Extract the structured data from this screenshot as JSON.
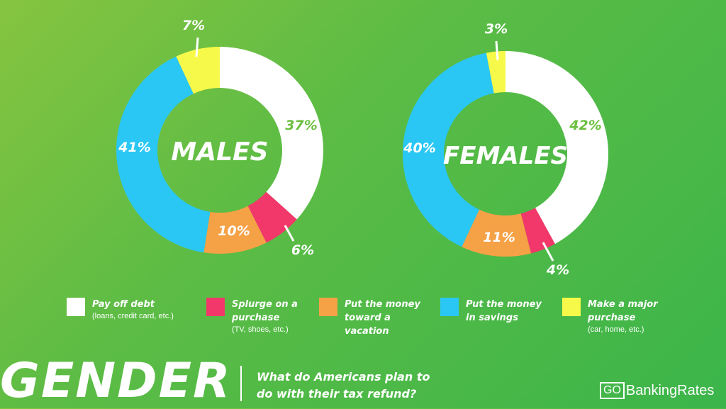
{
  "chart_data": [
    {
      "type": "pie",
      "title": "MALES",
      "categories": [
        "Pay off debt",
        "Splurge on a purchase",
        "Put the money toward a vacation",
        "Put the money in savings",
        "Make a major purchase"
      ],
      "values": [
        37,
        6,
        10,
        41,
        7
      ],
      "labels": [
        "37%",
        "6%",
        "10%",
        "41%",
        "7%"
      ]
    },
    {
      "type": "pie",
      "title": "FEMALES",
      "categories": [
        "Pay off debt",
        "Splurge on a purchase",
        "Put the money toward a vacation",
        "Put the money in savings",
        "Make a major purchase"
      ],
      "values": [
        42,
        4,
        11,
        40,
        3
      ],
      "labels": [
        "42%",
        "4%",
        "11%",
        "40%",
        "3%"
      ]
    }
  ],
  "colors": {
    "pay_off_debt": "#ffffff",
    "splurge": "#f2386a",
    "vacation": "#f5a146",
    "savings": "#2ac7f5",
    "major_purchase": "#f7f94a",
    "label_green": "#6bbf3f"
  },
  "legend": [
    {
      "label": "Pay off debt",
      "sub": "(loans, credit card, etc.)",
      "color": "#ffffff"
    },
    {
      "label": "Splurge on a\npurchase",
      "sub": "(TV, shoes, etc.)",
      "color": "#f2386a"
    },
    {
      "label": "Put the money\ntoward a\nvacation",
      "sub": "",
      "color": "#f5a146"
    },
    {
      "label": "Put the money\nin savings",
      "sub": "",
      "color": "#2ac7f5"
    },
    {
      "label": "Make a major\npurchase",
      "sub": "(car, home, etc.)",
      "color": "#f7f94a"
    }
  ],
  "footer": {
    "title": "GENDER",
    "subtitle": "What do Americans plan to\ndo with their tax refund?",
    "brand_go": "GO",
    "brand_name": "BankingRates"
  }
}
